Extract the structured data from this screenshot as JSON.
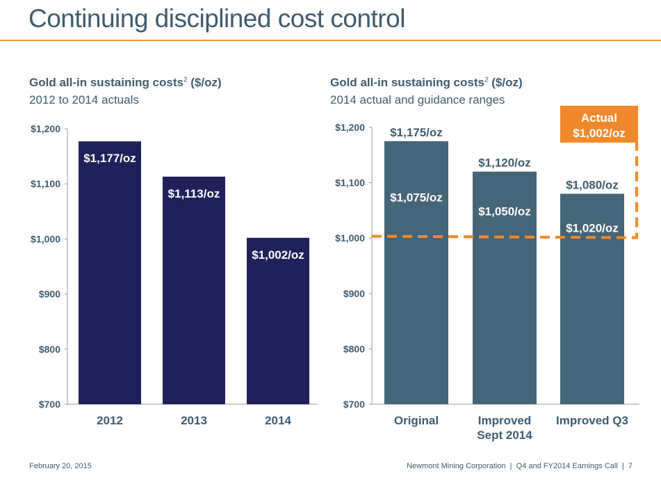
{
  "slide": {
    "title": "Continuing disciplined cost control",
    "footer_date": "February 20, 2015",
    "footer_right": "Newmont Mining Corporation  |  Q4 and FY2014 Earnings Call  |  7"
  },
  "colors": {
    "accent": "#f0892b",
    "left_bars": "#20205a",
    "right_bars": "#456578",
    "text": "#3f5b6e"
  },
  "chart_data": [
    {
      "type": "bar",
      "title": "Gold all-in sustaining costs",
      "title_sup": "2",
      "title_unit": " ($/oz)",
      "subtitle": "2012 to 2014 actuals",
      "categories": [
        "2012",
        "2013",
        "2014"
      ],
      "values": [
        1177,
        1113,
        1002
      ],
      "data_labels": [
        "$1,177/oz",
        "$1,113/oz",
        "$1,002/oz"
      ],
      "ylim": [
        700,
        1200
      ],
      "yticks": [
        "$700",
        "$800",
        "$900",
        "$1,000",
        "$1,100",
        "$1,200"
      ],
      "grid": false
    },
    {
      "type": "bar",
      "title": "Gold all-in sustaining costs",
      "title_sup": "2",
      "title_unit": " ($/oz)",
      "subtitle": "2014 actual and guidance ranges",
      "categories": [
        [
          "Original"
        ],
        [
          "Improved",
          "Sept 2014"
        ],
        [
          "Improved Q3"
        ]
      ],
      "range_high": [
        1175,
        1120,
        1080
      ],
      "range_low": [
        1075,
        1050,
        1020
      ],
      "high_labels": [
        "$1,175/oz",
        "$1,120/oz",
        "$1,080/oz"
      ],
      "low_labels": [
        "$1,075/oz",
        "$1,050/oz",
        "$1,020/oz"
      ],
      "actual": 1002,
      "actual_label": [
        "Actual",
        "$1,002/oz"
      ],
      "ylim": [
        700,
        1200
      ],
      "yticks": [
        "$700",
        "$800",
        "$900",
        "$1,000",
        "$1,100",
        "$1,200"
      ],
      "grid": false
    }
  ]
}
